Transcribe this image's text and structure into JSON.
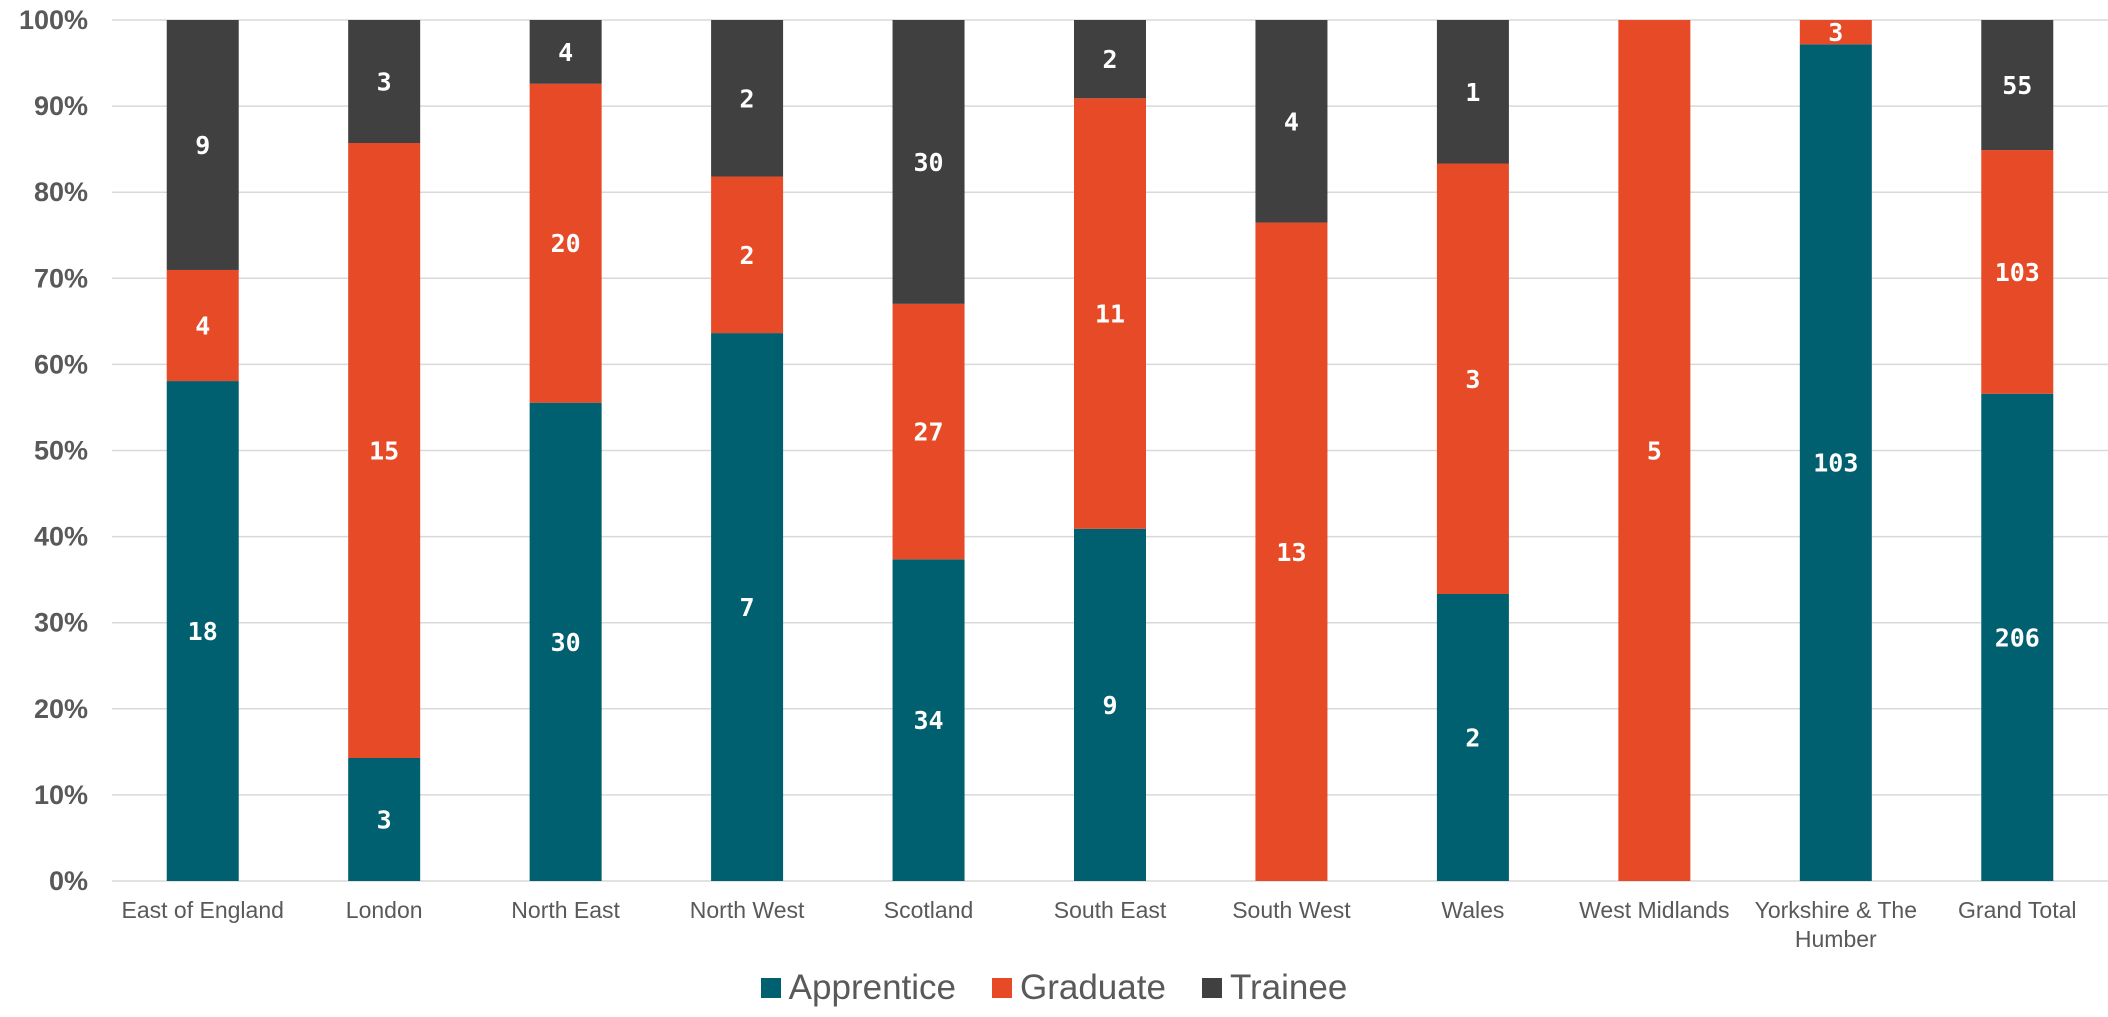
{
  "chart_data": {
    "type": "bar",
    "stacked": true,
    "normalized": true,
    "categories": [
      "East of England",
      "London",
      "North East",
      "North West",
      "Scotland",
      "South East",
      "South West",
      "Wales",
      "West Midlands",
      "Yorkshire & The Humber",
      "Grand Total"
    ],
    "series": [
      {
        "name": "Apprentice",
        "color": "#00606f",
        "values": [
          18,
          3,
          30,
          7,
          34,
          9,
          0,
          2,
          0,
          103,
          206
        ]
      },
      {
        "name": "Graduate",
        "color": "#e64a27",
        "values": [
          4,
          15,
          20,
          2,
          27,
          11,
          13,
          3,
          5,
          3,
          103
        ]
      },
      {
        "name": "Trainee",
        "color": "#404040",
        "values": [
          9,
          3,
          4,
          2,
          30,
          2,
          4,
          1,
          0,
          0,
          55
        ]
      }
    ],
    "y_ticks": [
      "0%",
      "10%",
      "20%",
      "30%",
      "40%",
      "50%",
      "60%",
      "70%",
      "80%",
      "90%",
      "100%"
    ],
    "ylim": [
      0,
      100
    ],
    "grid": true,
    "legend_position": "bottom"
  }
}
